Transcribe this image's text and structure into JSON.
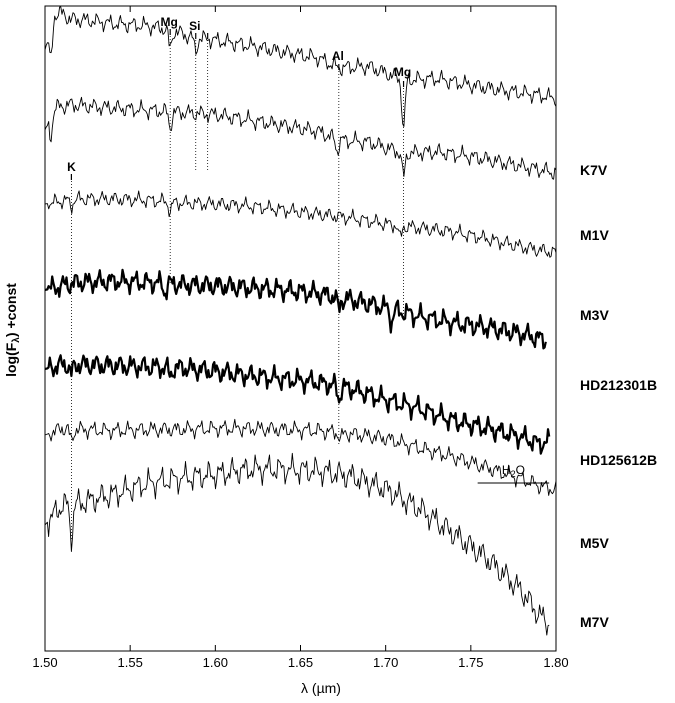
{
  "chart_data": {
    "type": "line",
    "title": "",
    "xlabel": "λ (µm)",
    "ylabel": "log(F",
    "ylabel_sub": "λ",
    "ylabel_end": ") +const",
    "xlim": [
      1.5,
      1.8
    ],
    "x_ticks": [
      1.5,
      1.55,
      1.6,
      1.65,
      1.7,
      1.75,
      1.8
    ],
    "x_tick_labels": [
      "1.50",
      "1.55",
      "1.60",
      "1.65",
      "1.70",
      "1.75",
      "1.80"
    ],
    "series": [
      {
        "name": "K7V",
        "bold": false,
        "points": [
          [
            1.5,
            0.0
          ],
          [
            1.505,
            1.6
          ],
          [
            1.509,
            1.7
          ],
          [
            1.515,
            1.4
          ],
          [
            1.525,
            1.35
          ],
          [
            1.54,
            1.2
          ],
          [
            1.56,
            1.1
          ],
          [
            1.575,
            0.9
          ],
          [
            1.585,
            0.6
          ],
          [
            1.6,
            0.45
          ],
          [
            1.62,
            0.2
          ],
          [
            1.64,
            -0.1
          ],
          [
            1.66,
            -0.35
          ],
          [
            1.672,
            -0.8
          ],
          [
            1.69,
            -0.75
          ],
          [
            1.71,
            -1.35
          ],
          [
            1.73,
            -1.3
          ],
          [
            1.75,
            -1.6
          ],
          [
            1.77,
            -1.85
          ],
          [
            1.79,
            -2.05
          ],
          [
            1.8,
            -2.2
          ]
        ],
        "features": [
          [
            1.5035,
            -1.6
          ],
          [
            1.5735,
            -0.9
          ],
          [
            1.5885,
            -0.6
          ],
          [
            1.7105,
            -2.3
          ]
        ]
      },
      {
        "name": "M1V",
        "bold": false,
        "points": [
          [
            1.5,
            0.0
          ],
          [
            1.505,
            1.0
          ],
          [
            1.515,
            1.15
          ],
          [
            1.53,
            1.05
          ],
          [
            1.55,
            0.95
          ],
          [
            1.57,
            0.85
          ],
          [
            1.58,
            0.8
          ],
          [
            1.6,
            0.7
          ],
          [
            1.62,
            0.45
          ],
          [
            1.64,
            0.2
          ],
          [
            1.66,
            -0.05
          ],
          [
            1.672,
            -0.45
          ],
          [
            1.69,
            -0.55
          ],
          [
            1.71,
            -1.05
          ],
          [
            1.73,
            -1.0
          ],
          [
            1.75,
            -1.2
          ],
          [
            1.77,
            -1.5
          ],
          [
            1.79,
            -1.8
          ],
          [
            1.8,
            -1.95
          ]
        ],
        "features": [
          [
            1.5035,
            -1.0
          ],
          [
            1.5735,
            -0.7
          ],
          [
            1.6715,
            -0.5
          ],
          [
            1.7105,
            -1.1
          ]
        ]
      },
      {
        "name": "M3V",
        "bold": false,
        "points": [
          [
            1.5,
            0.0
          ],
          [
            1.51,
            0.15
          ],
          [
            1.52,
            0.25
          ],
          [
            1.54,
            0.25
          ],
          [
            1.56,
            0.2
          ],
          [
            1.58,
            0.05
          ],
          [
            1.6,
            0.0
          ],
          [
            1.62,
            -0.1
          ],
          [
            1.64,
            -0.3
          ],
          [
            1.66,
            -0.5
          ],
          [
            1.68,
            -0.7
          ],
          [
            1.7,
            -1.0
          ],
          [
            1.72,
            -1.2
          ],
          [
            1.74,
            -1.4
          ],
          [
            1.76,
            -1.75
          ],
          [
            1.78,
            -2.15
          ],
          [
            1.79,
            -2.3
          ],
          [
            1.8,
            -2.45
          ]
        ],
        "features": [
          [
            1.5155,
            -0.3
          ],
          [
            1.5735,
            -0.45
          ],
          [
            1.7085,
            -0.65
          ]
        ]
      },
      {
        "name": "HD212301B",
        "bold": true,
        "points": [
          [
            1.5,
            0.0
          ],
          [
            1.51,
            0.2
          ],
          [
            1.52,
            0.35
          ],
          [
            1.54,
            0.4
          ],
          [
            1.56,
            0.35
          ],
          [
            1.58,
            0.25
          ],
          [
            1.6,
            0.2
          ],
          [
            1.62,
            0.1
          ],
          [
            1.64,
            0.0
          ],
          [
            1.66,
            -0.15
          ],
          [
            1.68,
            -0.45
          ],
          [
            1.7,
            -0.8
          ],
          [
            1.72,
            -1.2
          ],
          [
            1.74,
            -1.5
          ],
          [
            1.76,
            -1.7
          ],
          [
            1.78,
            -2.0
          ],
          [
            1.79,
            -2.2
          ],
          [
            1.794,
            -2.3
          ]
        ],
        "features": [
          [
            1.5705,
            -0.4
          ],
          [
            1.6725,
            -0.55
          ],
          [
            1.7035,
            -0.6
          ]
        ]
      },
      {
        "name": "HD125612B",
        "bold": true,
        "points": [
          [
            1.5,
            0.0
          ],
          [
            1.51,
            0.2
          ],
          [
            1.52,
            0.2
          ],
          [
            1.54,
            0.15
          ],
          [
            1.56,
            0.1
          ],
          [
            1.58,
            0.05
          ],
          [
            1.6,
            -0.1
          ],
          [
            1.62,
            -0.3
          ],
          [
            1.64,
            -0.45
          ],
          [
            1.66,
            -0.6
          ],
          [
            1.68,
            -0.9
          ],
          [
            1.7,
            -1.4
          ],
          [
            1.72,
            -1.8
          ],
          [
            1.74,
            -2.35
          ],
          [
            1.76,
            -2.7
          ],
          [
            1.78,
            -3.1
          ],
          [
            1.79,
            -3.4
          ],
          [
            1.796,
            -3.3
          ]
        ],
        "features": [
          [
            1.5155,
            -0.45
          ],
          [
            1.5735,
            -0.4
          ],
          [
            1.6725,
            -0.55
          ]
        ]
      },
      {
        "name": "M5V",
        "bold": false,
        "points": [
          [
            1.5,
            0.0
          ],
          [
            1.51,
            0.3
          ],
          [
            1.52,
            0.25
          ],
          [
            1.54,
            0.2
          ],
          [
            1.56,
            0.25
          ],
          [
            1.58,
            0.25
          ],
          [
            1.6,
            0.3
          ],
          [
            1.62,
            0.3
          ],
          [
            1.64,
            0.25
          ],
          [
            1.66,
            0.2
          ],
          [
            1.68,
            0.05
          ],
          [
            1.7,
            -0.15
          ],
          [
            1.72,
            -0.6
          ],
          [
            1.74,
            -1.0
          ],
          [
            1.76,
            -1.5
          ],
          [
            1.78,
            -2.0
          ],
          [
            1.79,
            -2.3
          ],
          [
            1.8,
            -2.5
          ]
        ],
        "features": [
          [
            1.5155,
            -0.55
          ],
          [
            1.6735,
            -0.3
          ]
        ]
      },
      {
        "name": "M7V",
        "bold": false,
        "points": [
          [
            1.5,
            0.0
          ],
          [
            1.51,
            0.55
          ],
          [
            1.52,
            0.6
          ],
          [
            1.54,
            0.85
          ],
          [
            1.56,
            1.15
          ],
          [
            1.58,
            1.3
          ],
          [
            1.6,
            1.4
          ],
          [
            1.62,
            1.55
          ],
          [
            1.64,
            1.55
          ],
          [
            1.66,
            1.5
          ],
          [
            1.68,
            1.35
          ],
          [
            1.7,
            1.0
          ],
          [
            1.72,
            0.45
          ],
          [
            1.74,
            -0.25
          ],
          [
            1.76,
            -0.95
          ],
          [
            1.78,
            -1.85
          ],
          [
            1.79,
            -2.5
          ],
          [
            1.796,
            -2.75
          ]
        ],
        "features": [
          [
            1.5155,
            -0.9
          ]
        ]
      }
    ],
    "line_identifications": [
      {
        "label": "Mg",
        "x": 1.5735
      },
      {
        "label": "Si",
        "x": 1.5885
      },
      {
        "label": "",
        "x": 1.5955
      },
      {
        "label": "Al",
        "x": 1.6725
      },
      {
        "label": "Mg",
        "x": 1.7105
      },
      {
        "label": "K",
        "x": 1.5155
      }
    ],
    "band": {
      "label": "H",
      "label_sub": "2",
      "label_end": "O",
      "x_range": [
        1.754,
        1.796
      ]
    },
    "grid": false,
    "legend": "labels at right of each spectrum"
  }
}
